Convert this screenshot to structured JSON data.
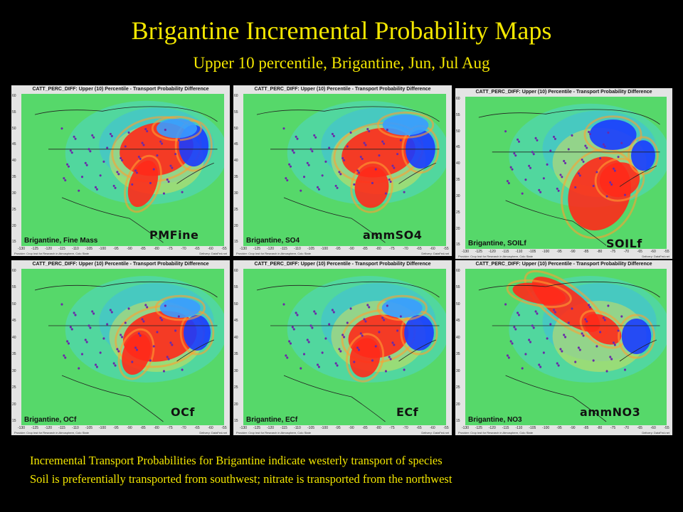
{
  "title": "Brigantine Incremental Probability Maps",
  "subtitle": "Upper 10 percentile, Brigantine, Jun, Jul Aug",
  "panel_header": "CATT_PERC_DIFF: Upper (10) Percentile - Transport Probability Difference",
  "axis": {
    "y_ticks": [
      "60",
      "55",
      "50",
      "45",
      "40",
      "35",
      "30",
      "25",
      "20",
      "15"
    ],
    "x_ticks": [
      "-130",
      "-125",
      "-120",
      "-115",
      "-110",
      "-105",
      "-100",
      "-95",
      "-90",
      "-85",
      "-80",
      "-75",
      "-70",
      "-65",
      "-60",
      "-55"
    ]
  },
  "footer_left": "Provider: Crop Inst for Research in Atmosphere, Colo State",
  "footer_right": "Delivery: DataFed.net",
  "panels": [
    {
      "map_label": "Brigantine, Fine Mass",
      "species": "PMFine"
    },
    {
      "map_label": "Brigantine, SO4",
      "species": "ammSO4"
    },
    {
      "map_label": "Brigantine, SOILf",
      "species": "SOILf"
    },
    {
      "map_label": "Brigantine, OCf",
      "species": "OCf"
    },
    {
      "map_label": "Brigantine, ECf",
      "species": "ECf"
    },
    {
      "map_label": "Brigantine, NO3",
      "species": "ammNO3"
    }
  ],
  "colors": {
    "heading": "#f2e600",
    "background": "#000000",
    "field_green": "#56d86a",
    "high_red": "#ff2a1a",
    "low_blue": "#1a3cff"
  },
  "captions": [
    "Incremental Transport Probabilities for Brigantine indicate westerly transport of species",
    "Soil is preferentially transported from southwest; nitrate is transported from the northwest"
  ]
}
